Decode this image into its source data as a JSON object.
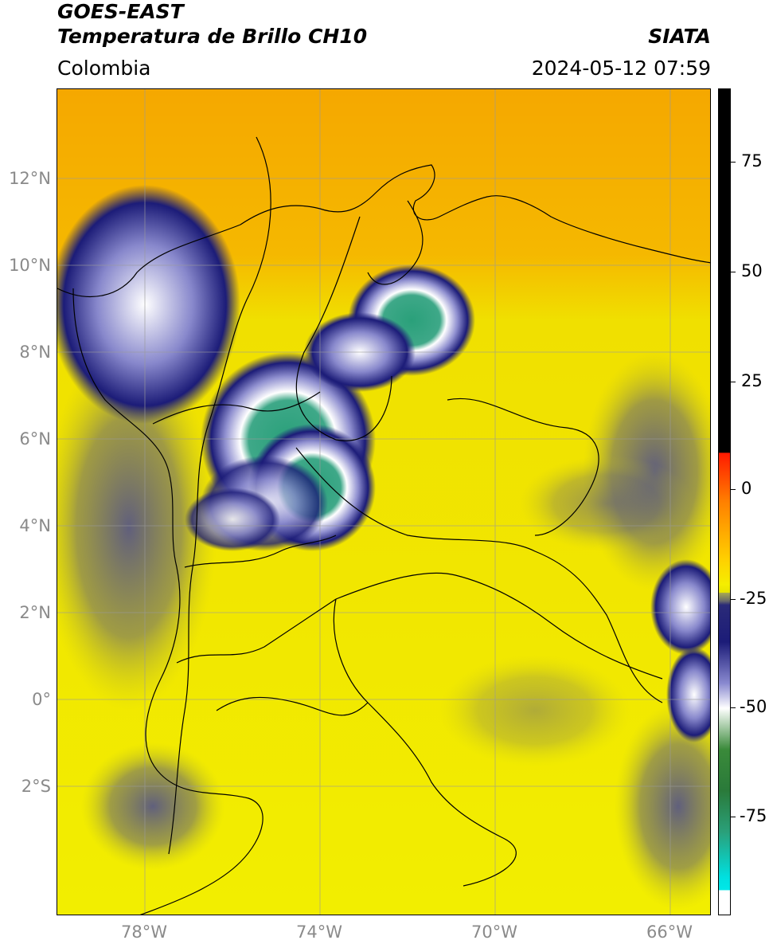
{
  "header": {
    "title_line1": "GOES-EAST",
    "title_line2": "Temperatura de Brillo CH10",
    "agency": "SIATA",
    "region": "Colombia",
    "datetime": "2024-05-12 07:59"
  },
  "axes": {
    "y_labels": [
      "12°N",
      "10°N",
      "8°N",
      "6°N",
      "4°N",
      "2°N",
      "0°",
      "2°S"
    ],
    "x_labels": [
      "78°W",
      "74°W",
      "70°W",
      "66°W"
    ]
  },
  "colorbar": {
    "ticks": [
      "75",
      "50",
      "25",
      "0",
      "-25",
      "-50",
      "-75"
    ]
  },
  "colors": {
    "sea_warm": "#f5a800",
    "land_warm": "#f5ee00",
    "cloud_dark": "#1c1c78",
    "cloud_white": "#ffffff",
    "cloud_cold": "#2aa07a"
  }
}
